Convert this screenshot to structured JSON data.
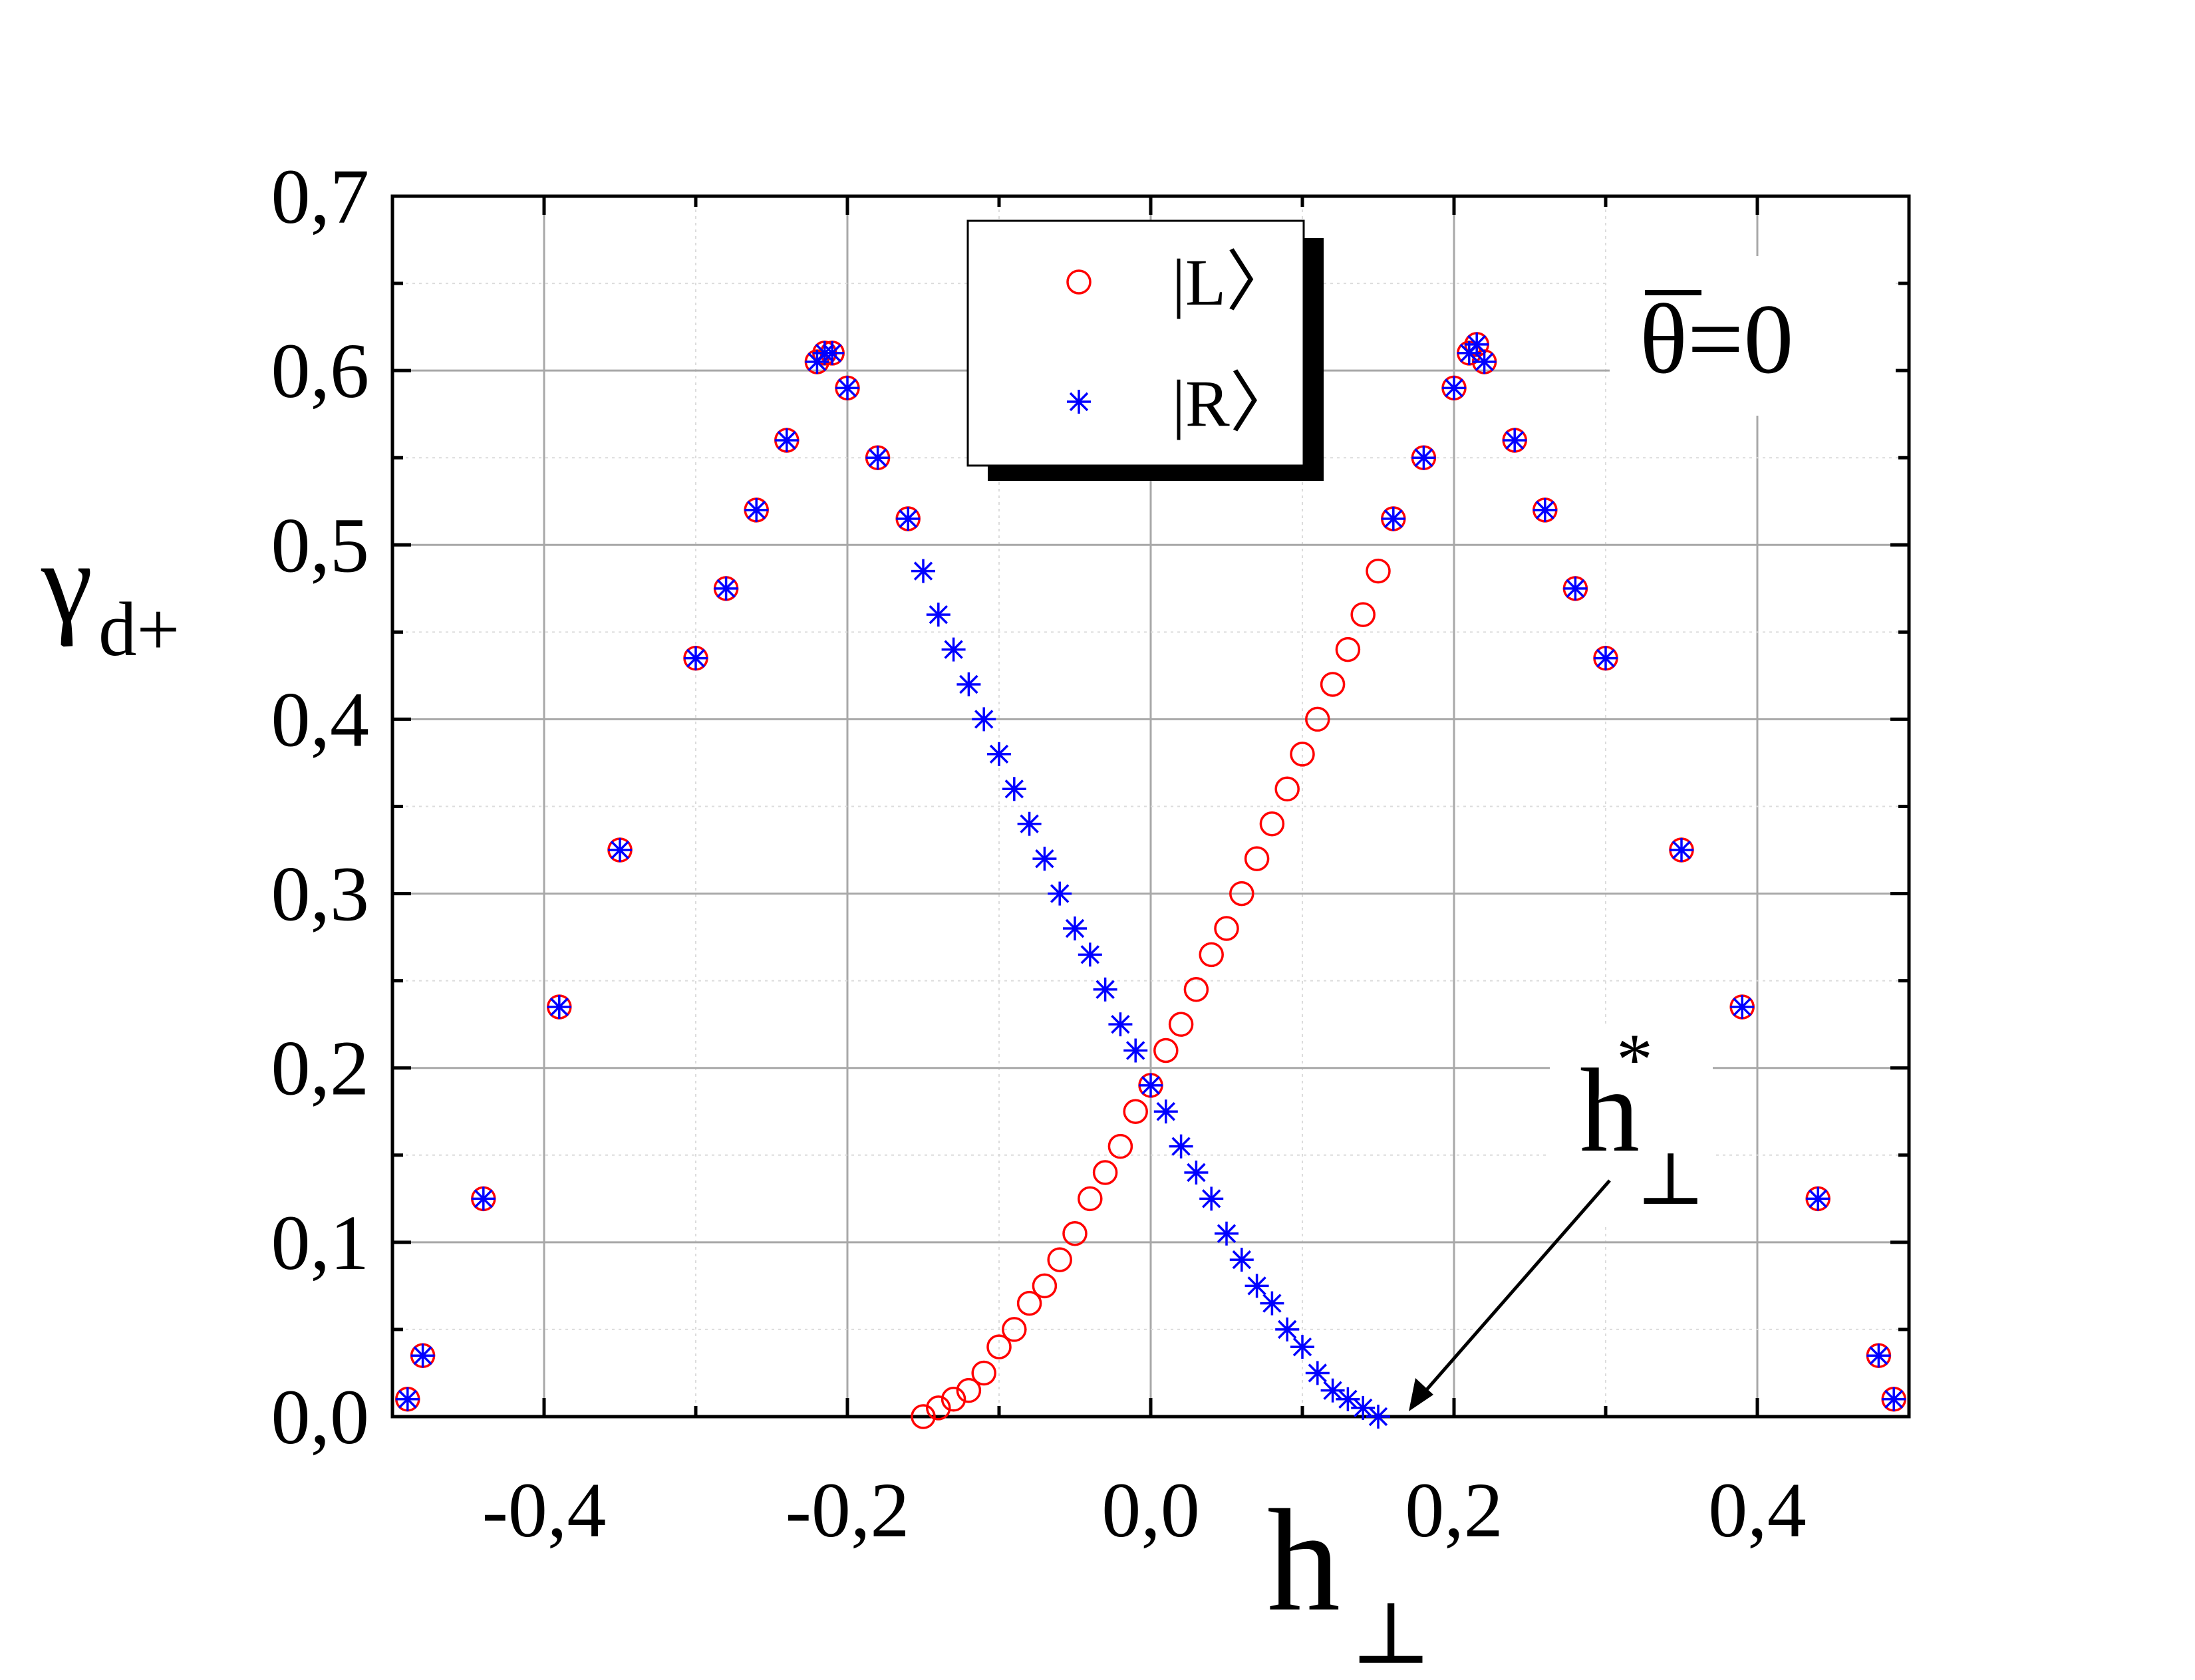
{
  "chart_data": {
    "type": "scatter",
    "title": "",
    "xlabel": "h",
    "xlabel_sub": "⊥",
    "ylabel": "γ",
    "ylabel_sub": "d+",
    "xlim": [
      -0.5,
      0.5
    ],
    "ylim": [
      0.0,
      0.7
    ],
    "xticks": [
      -0.4,
      -0.2,
      0.0,
      0.2,
      0.4
    ],
    "xtick_labels": [
      "-0,4",
      "-0,2",
      "0,0",
      "0,2",
      "0,4"
    ],
    "yticks": [
      0.0,
      0.1,
      0.2,
      0.3,
      0.4,
      0.5,
      0.6,
      0.7
    ],
    "ytick_labels": [
      "0,0",
      "0,1",
      "0,2",
      "0,3",
      "0,4",
      "0,5",
      "0,6",
      "0,7"
    ],
    "grid": true,
    "legend_position": "top-center",
    "series": [
      {
        "name": "|L〉",
        "marker": "open-circle",
        "color": "#ff0000",
        "x": [
          -0.49,
          -0.48,
          -0.44,
          -0.39,
          -0.35,
          -0.3,
          -0.28,
          -0.26,
          -0.24,
          -0.22,
          -0.215,
          -0.21,
          -0.2,
          -0.18,
          -0.16,
          -0.15,
          -0.14,
          -0.13,
          -0.12,
          -0.11,
          -0.1,
          -0.09,
          -0.08,
          -0.07,
          -0.06,
          -0.05,
          -0.04,
          -0.03,
          -0.02,
          -0.01,
          0.0,
          0.01,
          0.02,
          0.03,
          0.04,
          0.05,
          0.06,
          0.07,
          0.08,
          0.09,
          0.1,
          0.11,
          0.12,
          0.13,
          0.14,
          0.15,
          0.16,
          0.18,
          0.2,
          0.21,
          0.215,
          0.22,
          0.24,
          0.26,
          0.28,
          0.3,
          0.35,
          0.39,
          0.44,
          0.48,
          0.49
        ],
        "y": [
          0.01,
          0.035,
          0.125,
          0.235,
          0.325,
          0.435,
          0.475,
          0.52,
          0.56,
          0.605,
          0.61,
          0.61,
          0.59,
          0.55,
          0.515,
          0.0,
          0.005,
          0.01,
          0.015,
          0.025,
          0.04,
          0.05,
          0.065,
          0.075,
          0.09,
          0.105,
          0.125,
          0.14,
          0.155,
          0.175,
          0.19,
          0.21,
          0.225,
          0.245,
          0.265,
          0.28,
          0.3,
          0.32,
          0.34,
          0.36,
          0.38,
          0.4,
          0.42,
          0.44,
          0.46,
          0.485,
          0.515,
          0.55,
          0.59,
          0.61,
          0.615,
          0.605,
          0.56,
          0.52,
          0.475,
          0.435,
          0.325,
          0.235,
          0.125,
          0.035,
          0.01
        ]
      },
      {
        "name": "|R〉",
        "marker": "asterisk",
        "color": "#0000ff",
        "x": [
          -0.49,
          -0.48,
          -0.44,
          -0.39,
          -0.35,
          -0.3,
          -0.28,
          -0.26,
          -0.24,
          -0.22,
          -0.215,
          -0.21,
          -0.2,
          -0.18,
          -0.16,
          -0.15,
          -0.14,
          -0.13,
          -0.12,
          -0.11,
          -0.1,
          -0.09,
          -0.08,
          -0.07,
          -0.06,
          -0.05,
          -0.04,
          -0.03,
          -0.02,
          -0.01,
          0.0,
          0.01,
          0.02,
          0.03,
          0.04,
          0.05,
          0.06,
          0.07,
          0.08,
          0.09,
          0.1,
          0.11,
          0.12,
          0.13,
          0.14,
          0.15,
          0.16,
          0.18,
          0.2,
          0.21,
          0.215,
          0.22,
          0.24,
          0.26,
          0.28,
          0.3,
          0.35,
          0.39,
          0.44,
          0.48,
          0.49
        ],
        "y": [
          0.01,
          0.035,
          0.125,
          0.235,
          0.325,
          0.435,
          0.475,
          0.52,
          0.56,
          0.605,
          0.61,
          0.61,
          0.59,
          0.55,
          0.515,
          0.485,
          0.46,
          0.44,
          0.42,
          0.4,
          0.38,
          0.36,
          0.34,
          0.32,
          0.3,
          0.28,
          0.265,
          0.245,
          0.225,
          0.21,
          0.19,
          0.175,
          0.155,
          0.14,
          0.125,
          0.105,
          0.09,
          0.075,
          0.065,
          0.05,
          0.04,
          0.025,
          0.015,
          0.01,
          0.005,
          0.0,
          0.515,
          0.55,
          0.59,
          0.61,
          0.615,
          0.605,
          0.56,
          0.52,
          0.475,
          0.435,
          0.325,
          0.235,
          0.125,
          0.035,
          0.01
        ]
      }
    ],
    "annotations": [
      {
        "text": "θ=0",
        "overline_symbol": "θ",
        "position": "top-right"
      },
      {
        "text": "h",
        "superscript": "*",
        "subscript": "⊥",
        "arrow_to": [
          0.155,
          0.0
        ]
      }
    ]
  }
}
